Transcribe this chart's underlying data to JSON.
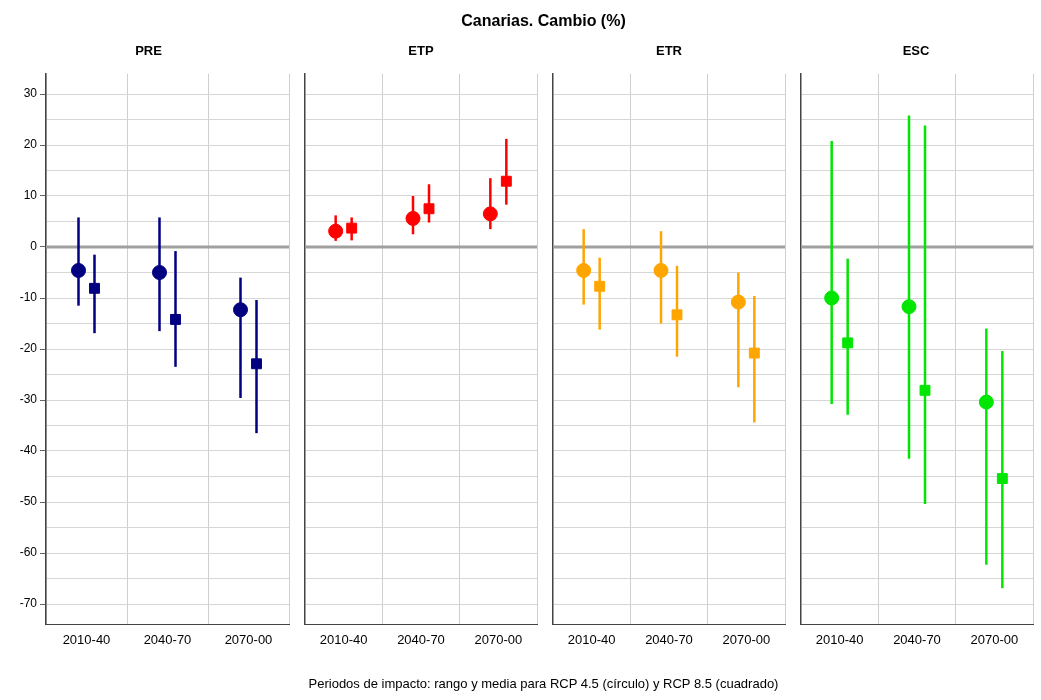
{
  "chart_data": [
    {
      "type": "scatter",
      "title": "PRE",
      "annotations": [
        "Canarias. Cambio (%)",
        "Periodos de impacto: rango y media para RCP 4.5 (círculo) y RCP 8.5 (cuadrado)"
      ],
      "categories": [
        "2010-40",
        "2040-70",
        "2070-00"
      ],
      "ylim": [
        -74,
        34
      ],
      "yticks": [
        {
          "value": -70,
          "label": "-70"
        },
        {
          "value": -65,
          "label": null
        },
        {
          "value": -60,
          "label": "-60"
        },
        {
          "value": -55,
          "label": null
        },
        {
          "value": -50,
          "label": "-50"
        },
        {
          "value": -45,
          "label": null
        },
        {
          "value": -40,
          "label": "-40"
        },
        {
          "value": -35,
          "label": null
        },
        {
          "value": -30,
          "label": "-30"
        },
        {
          "value": -25,
          "label": null
        },
        {
          "value": -20,
          "label": "-20"
        },
        {
          "value": -15,
          "label": null
        },
        {
          "value": -10,
          "label": "-10"
        },
        {
          "value": -5,
          "label": null
        },
        0,
        {
          "value": 5,
          "label": null
        },
        10,
        {
          "value": 15,
          "label": null
        },
        20,
        {
          "value": 25,
          "label": null
        },
        30
      ],
      "grid": true,
      "ref_lines": [
        {
          "axis": "y",
          "value": 0,
          "color": "#a0a0a0"
        }
      ],
      "series": [
        {
          "color": "#000080",
          "marker": "circle",
          "values": [
            -4.6,
            -5,
            -12.3
          ],
          "errors": [
            [
              -11.5,
              5.8
            ],
            [
              -16.5,
              5.8
            ],
            [
              -29.6,
              -6
            ]
          ]
        },
        {
          "color": "#000080",
          "marker": "square",
          "values": [
            -8.1,
            -14.2,
            -22.9
          ],
          "errors": [
            [
              -16.9,
              -1.5
            ],
            [
              -23.5,
              -0.8
            ],
            [
              -36.5,
              -10.4
            ]
          ]
        }
      ]
    },
    {
      "type": "scatter",
      "title": "ETP",
      "categories": [
        "2010-40",
        "2040-70",
        "2070-00"
      ],
      "ylim": [
        -74,
        34
      ],
      "yticks": [
        -70,
        -65,
        -60,
        -55,
        -50,
        -45,
        -40,
        -35,
        -30,
        -25,
        -20,
        -15,
        -10,
        -5,
        0,
        5,
        10,
        15,
        20,
        25,
        30
      ],
      "grid": true,
      "tick_labels": "x",
      "ref_lines": [
        {
          "axis": "y",
          "value": 0,
          "color": "#a0a0a0"
        }
      ],
      "series": [
        {
          "color": "#ff0000",
          "marker": "circle",
          "values": [
            3.1,
            5.6,
            6.5
          ],
          "errors": [
            [
              1.2,
              6.2
            ],
            [
              2.5,
              10
            ],
            [
              3.5,
              13.5
            ]
          ]
        },
        {
          "color": "#ff0000",
          "marker": "square",
          "values": [
            3.7,
            7.5,
            12.9
          ],
          "errors": [
            [
              1.3,
              5.8
            ],
            [
              4.8,
              12.3
            ],
            [
              8.3,
              21.2
            ]
          ]
        }
      ]
    },
    {
      "type": "scatter",
      "title": "ETR",
      "categories": [
        "2010-40",
        "2040-70",
        "2070-00"
      ],
      "ylim": [
        -74,
        34
      ],
      "yticks": [
        -70,
        -65,
        -60,
        -55,
        -50,
        -45,
        -40,
        -35,
        -30,
        -25,
        -20,
        -15,
        -10,
        -5,
        0,
        5,
        10,
        15,
        20,
        25,
        30
      ],
      "grid": true,
      "tick_labels": "x",
      "ref_lines": [
        {
          "axis": "y",
          "value": 0,
          "color": "#a0a0a0"
        }
      ],
      "series": [
        {
          "color": "#ffa500",
          "marker": "circle",
          "values": [
            -4.6,
            -4.6,
            -10.8
          ],
          "errors": [
            [
              -11.3,
              3.5
            ],
            [
              -15,
              3.1
            ],
            [
              -27.5,
              -5
            ]
          ]
        },
        {
          "color": "#ffa500",
          "marker": "square",
          "values": [
            -7.7,
            -13.3,
            -20.8
          ],
          "errors": [
            [
              -16.2,
              -2.1
            ],
            [
              -21.5,
              -3.7
            ],
            [
              -34.4,
              -9.6
            ]
          ]
        }
      ]
    },
    {
      "type": "scatter",
      "title": "ESC",
      "categories": [
        "2010-40",
        "2040-70",
        "2070-00"
      ],
      "ylim": [
        -74,
        34
      ],
      "yticks": [
        -70,
        -65,
        -60,
        -55,
        -50,
        -45,
        -40,
        -35,
        -30,
        -25,
        -20,
        -15,
        -10,
        -5,
        0,
        5,
        10,
        15,
        20,
        25,
        30
      ],
      "grid": true,
      "tick_labels": "x",
      "ref_lines": [
        {
          "axis": "y",
          "value": 0,
          "color": "#a0a0a0"
        }
      ],
      "series": [
        {
          "color": "#00e600",
          "marker": "circle",
          "values": [
            -10,
            -11.7,
            -30.4
          ],
          "errors": [
            [
              -30.8,
              20.8
            ],
            [
              -41.5,
              25.8
            ],
            [
              -62.3,
              -16
            ]
          ]
        },
        {
          "color": "#00e600",
          "marker": "square",
          "values": [
            -18.8,
            -28.1,
            -45.4
          ],
          "errors": [
            [
              -32.9,
              -2.3
            ],
            [
              -50.4,
              23.8
            ],
            [
              -66.9,
              -20.4
            ]
          ]
        }
      ]
    }
  ]
}
